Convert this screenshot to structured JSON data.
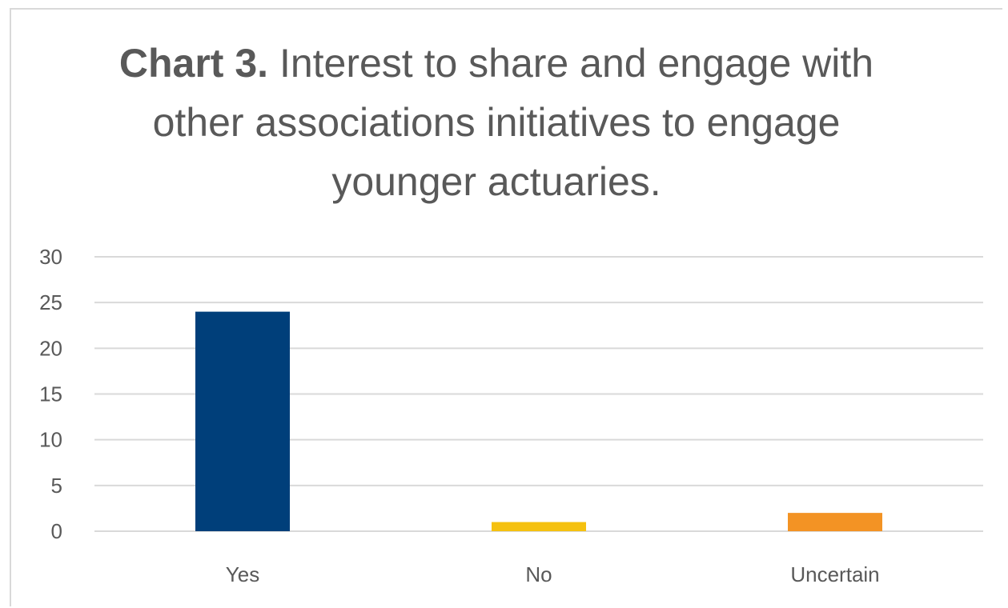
{
  "chart_data": {
    "type": "bar",
    "title_bold": "Chart 3.",
    "title_rest": " Interest to share and engage with other associations initiatives to engage younger actuaries.",
    "categories": [
      "Yes",
      "No",
      "Uncertain"
    ],
    "values": [
      24,
      1,
      2
    ],
    "bar_colors": [
      "#003f7a",
      "#f5c10f",
      "#f39324"
    ],
    "ylim": [
      0,
      30
    ],
    "yticks": [
      0,
      5,
      10,
      15,
      20,
      25,
      30
    ],
    "grid": true,
    "xlabel": "",
    "ylabel": ""
  }
}
